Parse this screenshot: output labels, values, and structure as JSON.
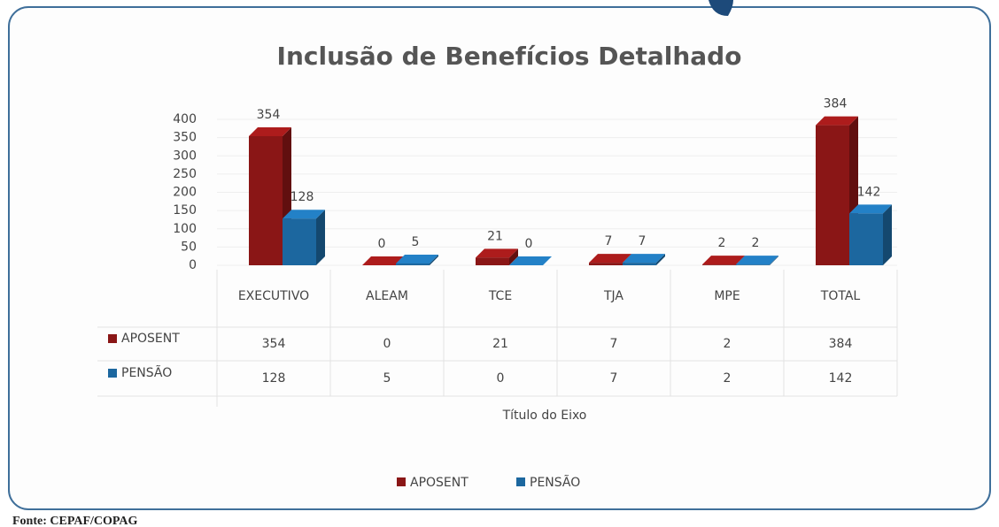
{
  "chart_data": {
    "type": "bar3d",
    "title": "Inclusão de Benefícios Detalhado",
    "categories": [
      "EXECUTIVO",
      "ALEAM",
      "TCE",
      "TJA",
      "MPE",
      "TOTAL"
    ],
    "series": [
      {
        "name": "APOSENT",
        "color": "#8a1616",
        "values": [
          354,
          0,
          21,
          7,
          2,
          384
        ]
      },
      {
        "name": "PENSÃO",
        "color": "#1c679f",
        "values": [
          128,
          5,
          0,
          7,
          2,
          142
        ]
      }
    ],
    "ylim": [
      0,
      400
    ],
    "yticks": [
      0,
      50,
      100,
      150,
      200,
      250,
      300,
      350,
      400
    ],
    "x_label": "Título do Eixo",
    "legend": "bottom",
    "source": "Fonte: CEPAF/COPAG"
  }
}
